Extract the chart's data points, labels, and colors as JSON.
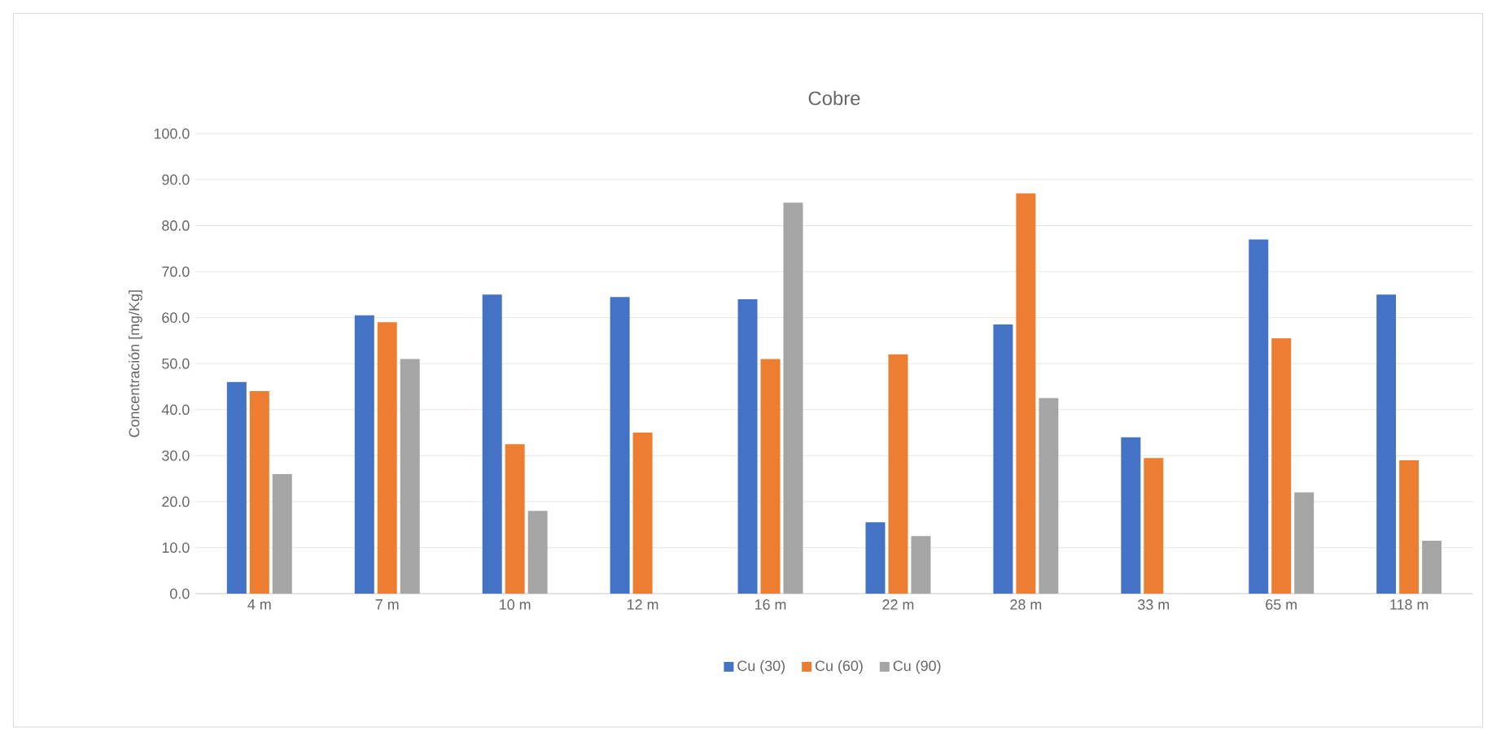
{
  "chart_data": {
    "type": "bar",
    "title": "Cobre",
    "ylabel": "Concentración [mg/Kg]",
    "categories": [
      "4 m",
      "7 m",
      "10 m",
      "12 m",
      "16 m",
      "22 m",
      "28 m",
      "33 m",
      "65 m",
      "118 m"
    ],
    "series": [
      {
        "name": "Cu (30)",
        "color": "#4472c4",
        "values": [
          46,
          60.5,
          65,
          64.5,
          64,
          15.5,
          58.5,
          34,
          77,
          65
        ]
      },
      {
        "name": "Cu (60)",
        "color": "#ed7d31",
        "values": [
          44,
          59,
          32.5,
          35,
          51,
          52,
          87,
          29.5,
          55.5,
          29
        ]
      },
      {
        "name": "Cu (90)",
        "color": "#a5a5a5",
        "values": [
          26,
          51,
          18,
          null,
          85,
          12.5,
          42.5,
          null,
          22,
          11.5
        ]
      }
    ],
    "ylim": [
      0,
      100
    ],
    "yticks": [
      {
        "value": 0,
        "label": "0.0"
      },
      {
        "value": 10,
        "label": "10.0"
      },
      {
        "value": 20,
        "label": "20.0"
      },
      {
        "value": 30,
        "label": "30.0"
      },
      {
        "value": 40,
        "label": "40.0"
      },
      {
        "value": 50,
        "label": "50.0"
      },
      {
        "value": 60,
        "label": "60.0"
      },
      {
        "value": 70,
        "label": "70.0"
      },
      {
        "value": 80,
        "label": "80.0"
      },
      {
        "value": 90,
        "label": "90.0"
      },
      {
        "value": 100,
        "label": "100.0"
      }
    ],
    "grid": "y",
    "legend": "bottom"
  }
}
